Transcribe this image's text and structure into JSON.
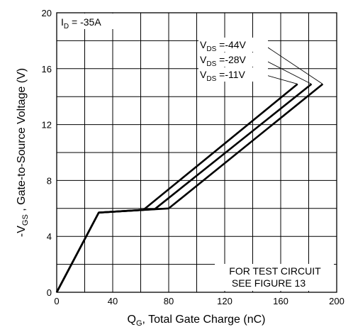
{
  "chart_data": {
    "type": "line",
    "xlabel_main": "Q",
    "xlabel_sub": "G",
    "xlabel_rest": ", Total Gate Charge (nC)",
    "ylabel_pre": "-V",
    "ylabel_sub": "GS",
    "ylabel_rest": " , Gate-to-Source Voltage (V)",
    "xlim": [
      0,
      200
    ],
    "ylim": [
      0,
      20
    ],
    "x_ticks": [
      0,
      40,
      80,
      120,
      160,
      200
    ],
    "y_ticks": [
      0,
      4,
      8,
      12,
      16,
      20
    ],
    "x_grid_step": 20,
    "y_grid_step": 2,
    "grid": true,
    "condition": {
      "pre": "I",
      "sub": "D",
      "post": " = -35A"
    },
    "note_lines": [
      "FOR TEST CIRCUIT",
      "SEE FIGURE  13"
    ],
    "series": [
      {
        "label_pre": "V",
        "label_sub": "DS",
        "label_post": " =-44V",
        "points": [
          [
            0,
            0
          ],
          [
            30,
            5.7
          ],
          [
            80,
            6.0
          ],
          [
            190,
            14.9
          ]
        ]
      },
      {
        "label_pre": "V",
        "label_sub": "DS",
        "label_post": " =-28V",
        "points": [
          [
            0,
            0
          ],
          [
            30,
            5.7
          ],
          [
            70,
            5.95
          ],
          [
            182,
            14.9
          ]
        ]
      },
      {
        "label_pre": "V",
        "label_sub": "DS",
        "label_post": " =-11V",
        "points": [
          [
            0,
            0
          ],
          [
            30,
            5.7
          ],
          [
            62,
            5.9
          ],
          [
            172,
            14.9
          ]
        ]
      }
    ]
  }
}
